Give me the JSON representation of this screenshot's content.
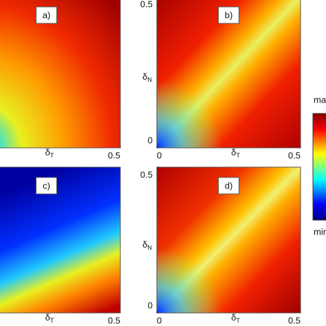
{
  "chart_data": [
    {
      "type": "heatmap",
      "panel_label": "a)",
      "xlabel": {
        "symbol": "δ",
        "subscript": "T"
      },
      "xlim": [
        0,
        0.5
      ],
      "ylim": [
        0,
        0.5
      ],
      "xticks": [
        0.5
      ]
    },
    {
      "type": "heatmap",
      "panel_label": "b)",
      "xlabel": {
        "symbol": "δ",
        "subscript": "T"
      },
      "ylabel": {
        "symbol": "δ",
        "subscript": "N"
      },
      "xlim": [
        0,
        0.5
      ],
      "ylim": [
        0,
        0.5
      ],
      "xticks": [
        0,
        0.5
      ],
      "yticks": [
        0,
        0.5
      ]
    },
    {
      "type": "heatmap",
      "panel_label": "c)",
      "xlabel": {
        "symbol": "δ",
        "subscript": "T"
      },
      "xlim": [
        0,
        0.5
      ],
      "ylim": [
        0,
        0.5
      ],
      "xticks": [
        0.5
      ]
    },
    {
      "type": "heatmap",
      "panel_label": "d)",
      "xlabel": {
        "symbol": "δ",
        "subscript": "T"
      },
      "ylabel": {
        "symbol": "δ",
        "subscript": "N"
      },
      "xlim": [
        0,
        0.5
      ],
      "ylim": [
        0,
        0.5
      ],
      "xticks": [
        0,
        0.5
      ],
      "yticks": [
        0,
        0.5
      ]
    }
  ],
  "colorbar": {
    "max_label": "max",
    "min_label": "min"
  }
}
